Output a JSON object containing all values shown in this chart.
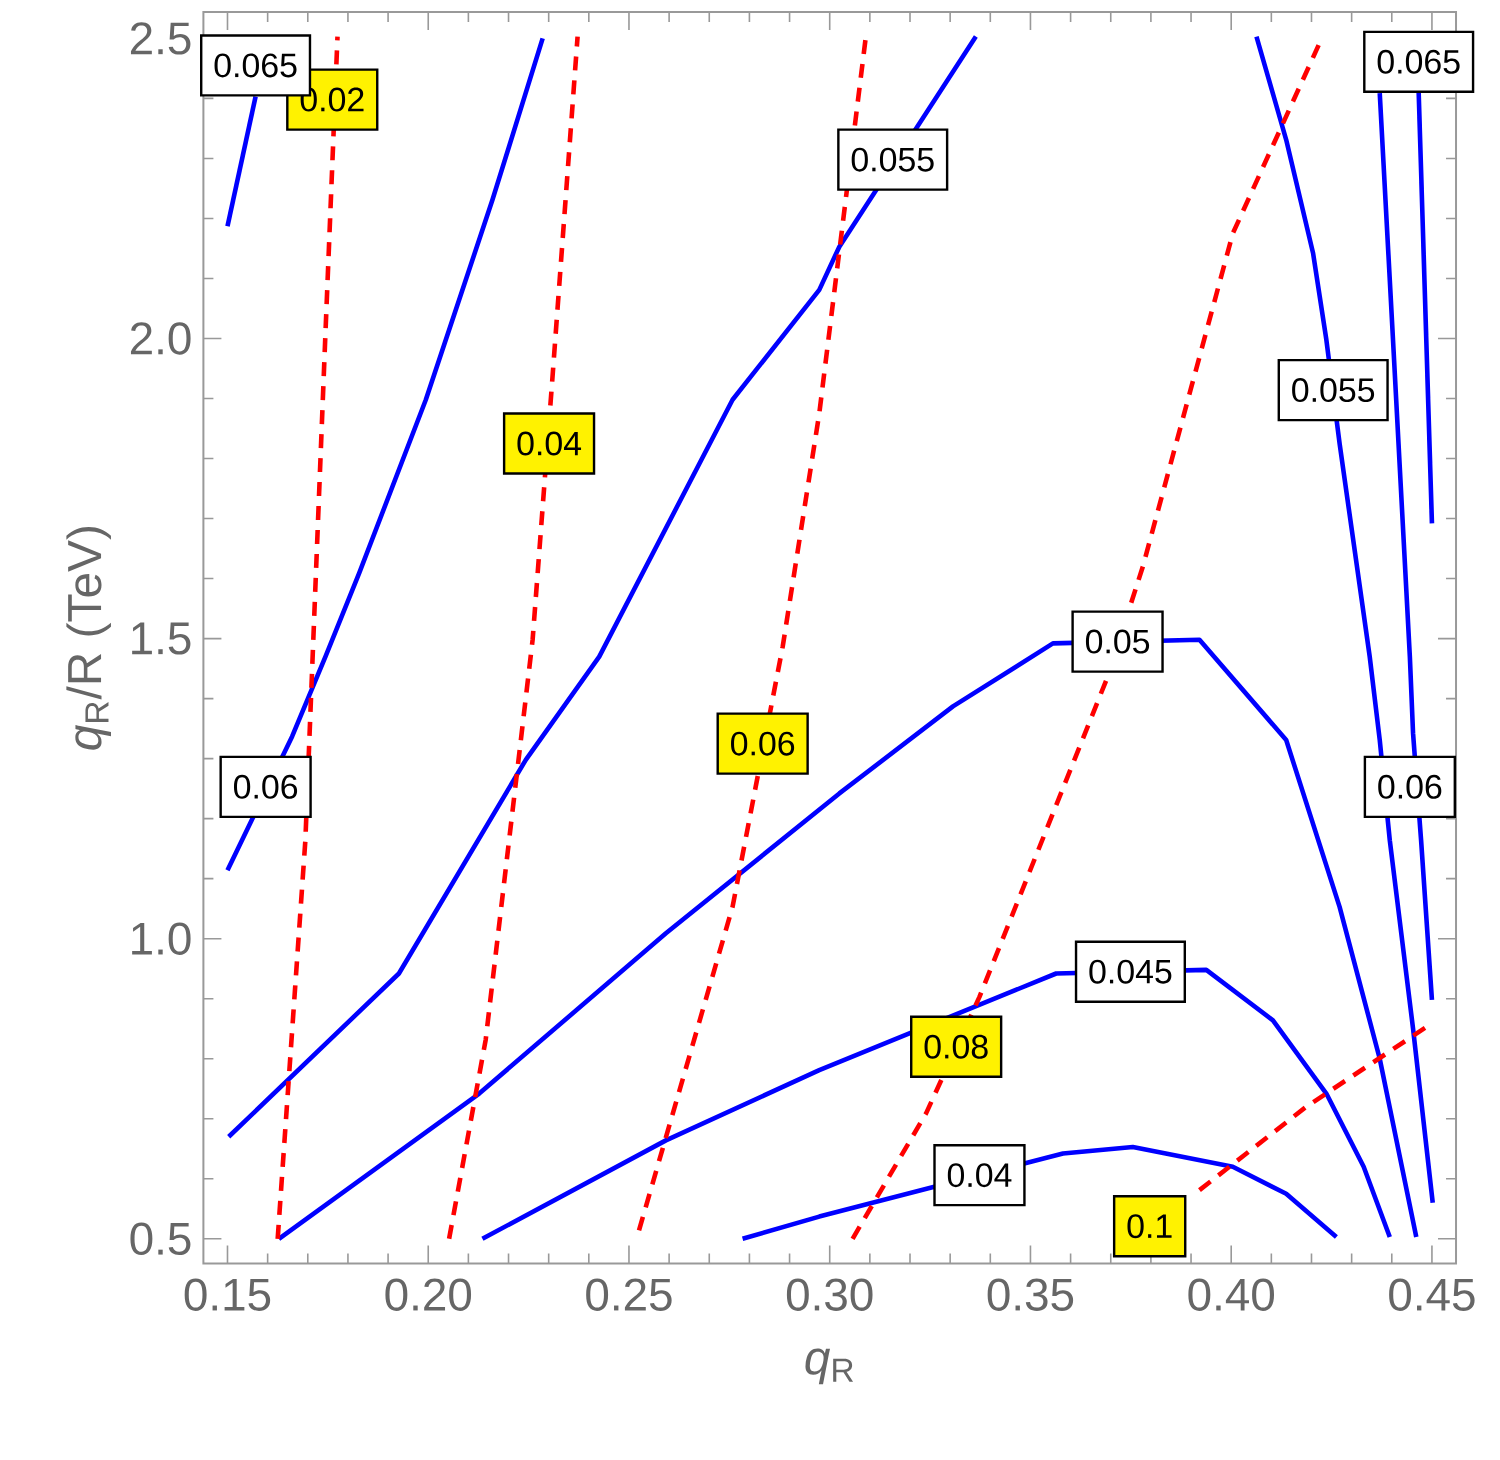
{
  "chart_data": {
    "type": "line",
    "xlabel": "*q*$_{R}$",
    "ylabel": "*q*$_{R}$/R (TeV)",
    "xlim": [
      0.144,
      0.456
    ],
    "ylim": [
      0.459,
      2.544
    ],
    "xticks": [
      0.15,
      {
        "value": 0.2,
        "label": "0.20"
      },
      0.25,
      {
        "value": 0.3,
        "label": "0.30"
      },
      0.35,
      {
        "value": 0.4,
        "label": "0.40"
      },
      0.45
    ],
    "yticks": [
      0.5,
      {
        "value": 1.0,
        "label": "1.0"
      },
      1.5,
      {
        "value": 2.0,
        "label": "2.0"
      },
      2.5
    ],
    "series": [
      {
        "color": "#0000ff",
        "line_style": "solid",
        "x": [
          0.15,
          0.157
        ],
        "values": [
          2.187,
          2.403
        ]
      },
      {
        "color": "#0000ff",
        "line_style": "solid",
        "x": [
          0.15,
          0.1661,
          0.1744,
          0.1828,
          0.1994,
          0.216,
          0.2285
        ],
        "values": [
          1.114,
          1.337,
          1.47,
          1.609,
          1.898,
          2.231,
          2.5
        ]
      },
      {
        "color": "#0000ff",
        "line_style": "solid",
        "x": [
          0.1503,
          0.1927,
          0.2243,
          0.2426,
          0.2758,
          0.2974,
          0.3024,
          0.3364
        ],
        "values": [
          0.67,
          0.942,
          1.298,
          1.47,
          1.898,
          2.081,
          2.153,
          2.503
        ]
      },
      {
        "color": "#0000ff",
        "line_style": "solid",
        "x": [
          0.1628,
          0.2127,
          0.2592,
          0.3024,
          0.3307,
          0.3556,
          0.3921,
          0.4137,
          0.427,
          0.437,
          0.4461
        ],
        "values": [
          0.5,
          0.742,
          1.009,
          1.242,
          1.387,
          1.492,
          1.498,
          1.331,
          1.053,
          0.8,
          0.503
        ]
      },
      {
        "color": "#0000ff",
        "line_style": "solid",
        "x": [
          0.2135,
          0.2592,
          0.2974,
          0.3564,
          0.3938,
          0.4104,
          0.4237,
          0.433,
          0.4395
        ],
        "values": [
          0.5,
          0.664,
          0.781,
          0.942,
          0.948,
          0.864,
          0.742,
          0.62,
          0.503
        ]
      },
      {
        "color": "#0000ff",
        "line_style": "solid",
        "x": [
          0.2783,
          0.2974,
          0.3581,
          0.3755,
          0.4004,
          0.4137,
          0.4262
        ],
        "values": [
          0.5,
          0.537,
          0.642,
          0.653,
          0.62,
          0.575,
          0.503
        ]
      },
      {
        "color": "#0000ff",
        "line_style": "solid",
        "x": [
          0.4063,
          0.4137,
          0.4204,
          0.4237,
          0.427,
          0.4345,
          0.437,
          0.4395,
          0.4453,
          0.4502
        ],
        "values": [
          2.503,
          2.331,
          2.142,
          1.998,
          1.825,
          1.47,
          1.331,
          1.164,
          0.85,
          0.56
        ]
      },
      {
        "color": "#0000ff",
        "line_style": "solid",
        "x": [
          0.437,
          0.4403,
          0.4445,
          0.4453,
          0.4473,
          0.45
        ],
        "values": [
          2.409,
          1.998,
          1.47,
          1.342,
          1.164,
          0.898
        ]
      },
      {
        "color": "#0000ff",
        "line_style": "solid",
        "x": [
          0.4467,
          0.45
        ],
        "values": [
          2.409,
          1.692
        ]
      },
      {
        "color": "#ff0000",
        "line_style": "dashed",
        "x": [
          0.1625,
          0.1694,
          0.1744,
          0.1774
        ],
        "values": [
          0.5,
          1.164,
          2.009,
          2.503
        ]
      },
      {
        "color": "#ff0000",
        "line_style": "dashed",
        "x": [
          0.2052,
          0.2143,
          0.226,
          0.2309,
          0.2372
        ],
        "values": [
          0.5,
          0.831,
          1.498,
          1.931,
          2.503
        ]
      },
      {
        "color": "#ff0000",
        "line_style": "dashed",
        "x": [
          0.2525,
          0.2758,
          0.2883,
          0.2974,
          0.309
        ],
        "values": [
          0.514,
          1.053,
          1.487,
          1.875,
          2.503
        ]
      },
      {
        "color": "#ff0000",
        "line_style": "dashed",
        "x": [
          0.3057,
          0.324,
          0.3373,
          0.3689,
          0.378,
          0.4004,
          0.422
        ],
        "values": [
          0.5,
          0.709,
          0.903,
          1.431,
          1.62,
          2.175,
          2.492
        ]
      },
      {
        "color": "#ff0000",
        "line_style": "dashed",
        "x": [
          0.3921,
          0.4187,
          0.45
        ],
        "values": [
          0.581,
          0.72,
          0.859
        ]
      }
    ],
    "annotations": [
      {
        "text": "0.02",
        "x": 0.1761,
        "y": 2.398
      },
      {
        "text": "0.065",
        "x": 0.157,
        "y": 2.403
      },
      {
        "text": "0.055",
        "x": 0.3157,
        "y": 2.298
      },
      {
        "text": "0.065",
        "x": 0.4467,
        "y": 2.409
      },
      {
        "text": "0.055",
        "x": 0.4254,
        "y": 1.914
      },
      {
        "text": "0.04",
        "x": 0.2301,
        "y": 1.825
      },
      {
        "text": "0.05",
        "x": 0.3717,
        "y": 1.495
      },
      {
        "text": "0.06",
        "x": 0.2833,
        "y": 1.325
      },
      {
        "text": "0.06",
        "x": 0.1595,
        "y": 1.253
      },
      {
        "text": "0.06",
        "x": 0.4445,
        "y": 1.253
      },
      {
        "text": "0.045",
        "x": 0.3749,
        "y": 0.945
      },
      {
        "text": "0.08",
        "x": 0.3315,
        "y": 0.82
      },
      {
        "text": "0.04",
        "x": 0.3373,
        "y": 0.606
      },
      {
        "text": "0.1",
        "x": 0.3797,
        "y": 0.521
      }
    ]
  }
}
